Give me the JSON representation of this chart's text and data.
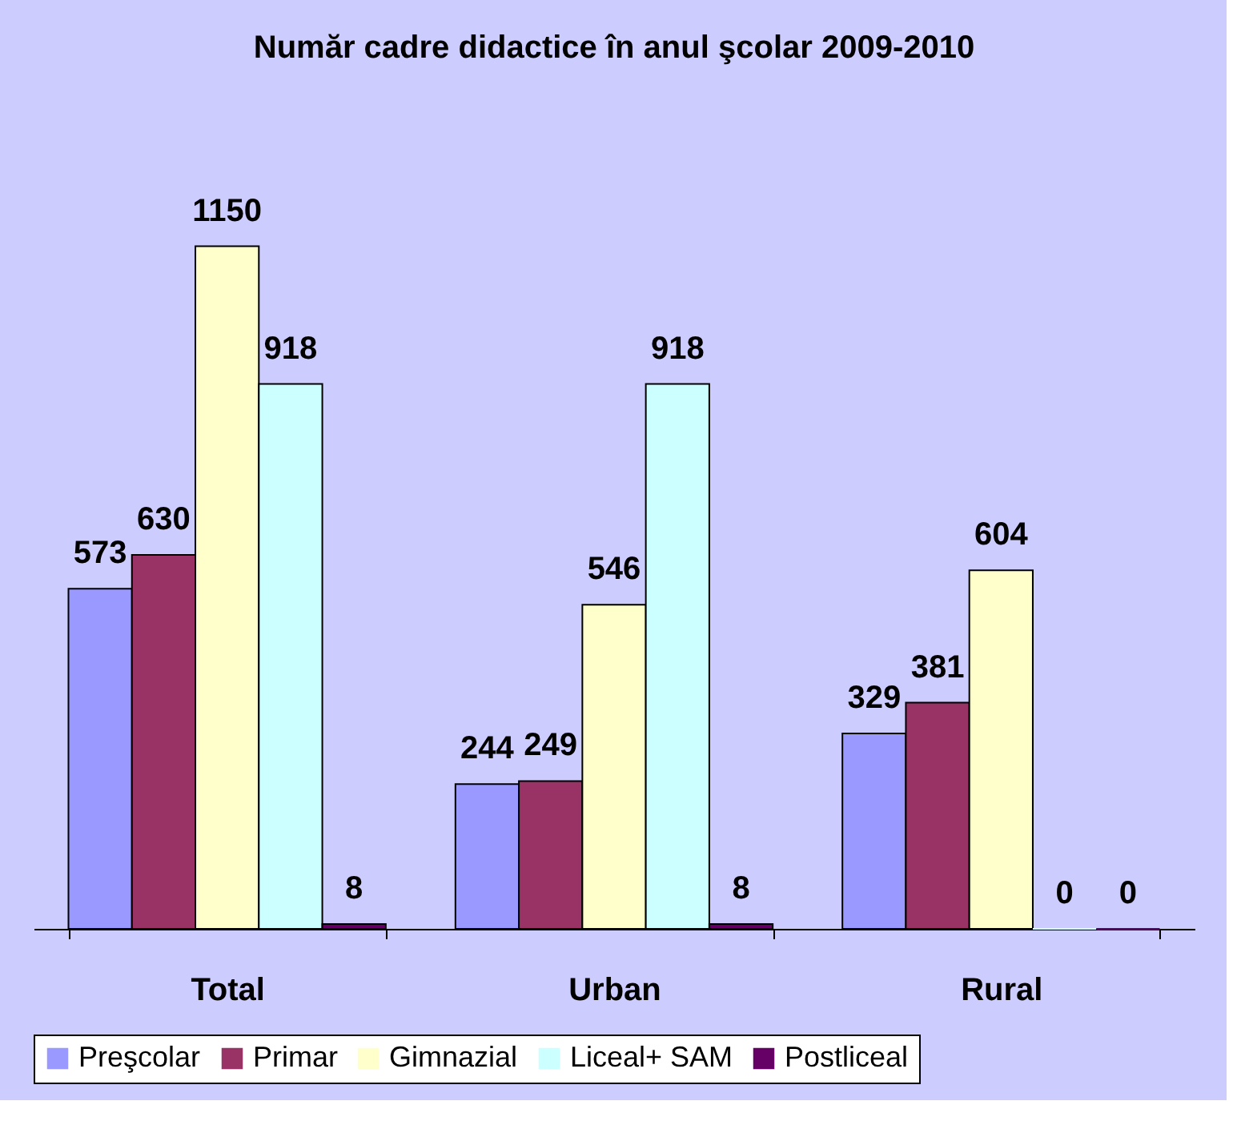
{
  "chart_data": {
    "type": "bar",
    "title": "Număr cadre didactice în anul şcolar 2009-2010",
    "categories": [
      "Total",
      "Urban",
      "Rural"
    ],
    "series": [
      {
        "name": "Preşcolar",
        "color": "#9999ff",
        "values": [
          573,
          244,
          329
        ]
      },
      {
        "name": "Primar",
        "color": "#993366",
        "values": [
          630,
          249,
          381
        ]
      },
      {
        "name": "Gimnazial",
        "color": "#ffffcc",
        "values": [
          1150,
          546,
          604
        ]
      },
      {
        "name": "Liceal+ SAM",
        "color": "#ccffff",
        "values": [
          918,
          918,
          0
        ]
      },
      {
        "name": "Postliceal",
        "color": "#660066",
        "values": [
          8,
          8,
          0
        ]
      }
    ],
    "data_labels": true,
    "legend": "bottom",
    "grid": false
  }
}
